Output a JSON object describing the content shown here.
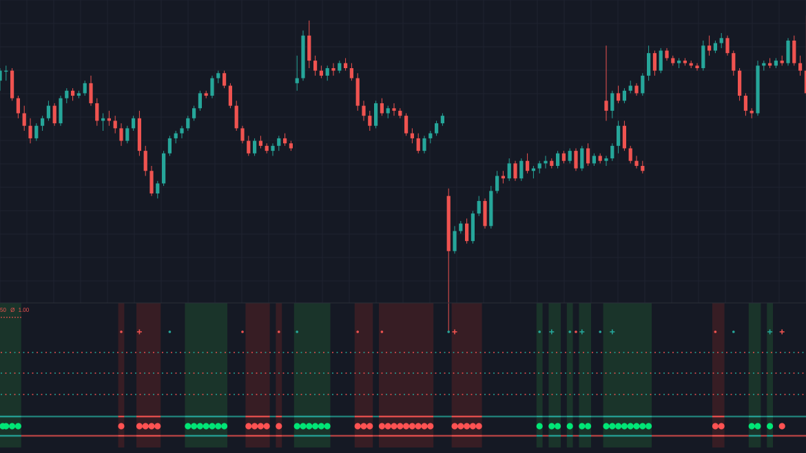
{
  "theme": {
    "background": "#151924",
    "grid": "#1e2230",
    "bull": "#26a69a",
    "bear": "#ef5350",
    "dot_green": "#00e676",
    "dot_red": "#ff5252",
    "zone_green": "#1b3a2c",
    "zone_red": "#3d1f24",
    "pane_divider": "#2a2e39"
  },
  "indicator": {
    "legend_value_a": "50",
    "legend_symbol": "Ø",
    "legend_value_b": "1.00"
  },
  "chart_data": {
    "type": "candlestick",
    "title": "",
    "xlabel": "",
    "ylabel": "",
    "ylim": [
      0,
      100
    ],
    "grid": true,
    "segments": [
      {
        "name": "segment-1",
        "x_start": 0,
        "candles": [
          [
            70,
            75,
            66,
            74
          ],
          [
            74,
            76,
            70,
            74
          ],
          [
            74,
            75,
            62,
            63
          ],
          [
            63,
            64,
            55,
            57
          ],
          [
            57,
            60,
            50,
            52
          ],
          [
            52,
            55,
            45,
            47
          ],
          [
            47,
            53,
            46,
            52
          ],
          [
            52,
            56,
            50,
            55
          ],
          [
            55,
            62,
            54,
            60
          ],
          [
            60,
            61,
            52,
            53
          ],
          [
            53,
            64,
            52,
            63
          ],
          [
            63,
            67,
            61,
            66
          ],
          [
            66,
            67,
            62,
            64
          ],
          [
            64,
            66,
            63,
            65
          ],
          [
            65,
            70,
            64,
            69
          ],
          [
            69,
            72,
            60,
            61
          ],
          [
            61,
            63,
            52,
            54
          ],
          [
            54,
            57,
            50,
            55
          ],
          [
            55,
            58,
            52,
            54
          ],
          [
            54,
            56,
            49,
            51
          ],
          [
            51,
            53,
            44,
            46
          ],
          [
            46,
            52,
            45,
            51
          ],
          [
            51,
            56,
            50,
            55
          ],
          [
            55,
            58,
            40,
            42
          ],
          [
            42,
            44,
            32,
            34
          ],
          [
            34,
            36,
            24,
            25
          ],
          [
            25,
            30,
            23,
            29
          ],
          [
            29,
            42,
            28,
            41
          ],
          [
            41,
            48,
            40,
            47
          ],
          [
            47,
            50,
            45,
            49
          ],
          [
            49,
            52,
            47,
            51
          ],
          [
            51,
            56,
            50,
            55
          ],
          [
            55,
            60,
            54,
            59
          ],
          [
            59,
            66,
            58,
            65
          ],
          [
            65,
            66,
            63,
            64
          ],
          [
            64,
            72,
            63,
            71
          ],
          [
            71,
            74,
            69,
            73
          ],
          [
            73,
            74,
            67,
            68
          ],
          [
            68,
            69,
            59,
            60
          ],
          [
            60,
            62,
            50,
            51
          ],
          [
            51,
            52,
            45,
            46
          ],
          [
            46,
            48,
            40,
            41
          ],
          [
            41,
            47,
            40,
            46
          ],
          [
            46,
            48,
            43,
            44
          ],
          [
            44,
            45,
            41,
            42
          ],
          [
            42,
            45,
            40,
            44
          ],
          [
            44,
            48,
            42,
            47
          ],
          [
            47,
            49,
            44,
            45
          ],
          [
            45,
            46,
            42,
            43
          ]
        ]
      },
      {
        "name": "segment-2",
        "x_start": 49,
        "candles": [
          [
            69,
            80,
            66,
            71
          ],
          [
            71,
            90,
            70,
            88
          ],
          [
            88,
            94,
            75,
            78
          ],
          [
            78,
            80,
            72,
            74
          ],
          [
            74,
            76,
            71,
            72
          ],
          [
            72,
            76,
            70,
            75
          ],
          [
            75,
            77,
            72,
            74
          ],
          [
            74,
            78,
            73,
            77
          ],
          [
            77,
            79,
            74,
            75
          ],
          [
            75,
            77,
            70,
            71
          ],
          [
            71,
            73,
            58,
            60
          ],
          [
            60,
            62,
            54,
            56
          ],
          [
            56,
            58,
            50,
            52
          ],
          [
            52,
            62,
            51,
            61
          ],
          [
            61,
            63,
            56,
            57
          ],
          [
            57,
            60,
            55,
            59
          ],
          [
            59,
            61,
            56,
            58
          ],
          [
            58,
            59,
            55,
            56
          ],
          [
            56,
            57,
            48,
            49
          ],
          [
            49,
            51,
            45,
            47
          ],
          [
            47,
            49,
            41,
            42
          ],
          [
            42,
            48,
            41,
            47
          ],
          [
            47,
            50,
            45,
            49
          ],
          [
            49,
            54,
            48,
            53
          ],
          [
            53,
            57,
            52,
            56
          ]
        ]
      },
      {
        "name": "segment-3",
        "x_start": 74,
        "candles": [
          [
            24,
            27,
            -30,
            2
          ],
          [
            2,
            12,
            1,
            10
          ],
          [
            10,
            14,
            9,
            13
          ],
          [
            13,
            15,
            5,
            6
          ],
          [
            6,
            18,
            5,
            17
          ],
          [
            17,
            24,
            16,
            22
          ],
          [
            22,
            23,
            11,
            12
          ],
          [
            12,
            28,
            11,
            26
          ],
          [
            26,
            34,
            25,
            32
          ],
          [
            32,
            34,
            29,
            31
          ],
          [
            31,
            39,
            30,
            37
          ],
          [
            37,
            38,
            30,
            31
          ],
          [
            31,
            39,
            30,
            38
          ],
          [
            38,
            41,
            33,
            34
          ],
          [
            34,
            36,
            31,
            35
          ],
          [
            35,
            38,
            33,
            37
          ],
          [
            37,
            40,
            35,
            38
          ],
          [
            38,
            39,
            35,
            36
          ],
          [
            36,
            42,
            35,
            41
          ],
          [
            41,
            42,
            37,
            38
          ],
          [
            38,
            43,
            37,
            42
          ],
          [
            42,
            43,
            34,
            35
          ],
          [
            35,
            44,
            34,
            43
          ],
          [
            43,
            45,
            36,
            37
          ],
          [
            37,
            41,
            36,
            40
          ],
          [
            40,
            41,
            37,
            38
          ],
          [
            38,
            40,
            36,
            39
          ],
          [
            39,
            45,
            38,
            44
          ],
          [
            44,
            54,
            41,
            52
          ],
          [
            52,
            54,
            42,
            43
          ],
          [
            43,
            44,
            37,
            38
          ],
          [
            38,
            40,
            35,
            36
          ],
          [
            36,
            38,
            33,
            34
          ]
        ]
      },
      {
        "name": "segment-4",
        "x_start": 100,
        "candles": [
          [
            62,
            84,
            54,
            58
          ],
          [
            58,
            66,
            55,
            65
          ],
          [
            65,
            68,
            61,
            62
          ],
          [
            62,
            67,
            61,
            66
          ],
          [
            66,
            70,
            65,
            68
          ],
          [
            68,
            69,
            64,
            65
          ],
          [
            65,
            73,
            64,
            72
          ],
          [
            72,
            84,
            70,
            81
          ],
          [
            81,
            82,
            72,
            74
          ],
          [
            74,
            83,
            73,
            82
          ],
          [
            82,
            83,
            78,
            79
          ],
          [
            79,
            80,
            76,
            77
          ],
          [
            77,
            79,
            75,
            78
          ],
          [
            78,
            79,
            76,
            77
          ],
          [
            77,
            78,
            75,
            76
          ],
          [
            76,
            77,
            74,
            75
          ],
          [
            75,
            86,
            74,
            84
          ],
          [
            84,
            88,
            80,
            82
          ],
          [
            82,
            86,
            81,
            85
          ],
          [
            85,
            89,
            83,
            87
          ],
          [
            87,
            88,
            80,
            81
          ],
          [
            81,
            82,
            72,
            74
          ],
          [
            74,
            75,
            62,
            64
          ],
          [
            64,
            65,
            56,
            58
          ],
          [
            58,
            59,
            55,
            57
          ],
          [
            57,
            78,
            56,
            76
          ],
          [
            76,
            78,
            74,
            77
          ],
          [
            77,
            79,
            75,
            76
          ],
          [
            76,
            79,
            75,
            78
          ],
          [
            78,
            80,
            76,
            77
          ],
          [
            77,
            87,
            76,
            86
          ],
          [
            86,
            88,
            76,
            77
          ],
          [
            77,
            80,
            72,
            74
          ],
          [
            74,
            96,
            64,
            65
          ],
          [
            65,
            66,
            57,
            58
          ],
          [
            58,
            59,
            50,
            51
          ]
        ]
      }
    ],
    "zones": [
      {
        "from": 0,
        "to": 3,
        "color": "green"
      },
      {
        "from": 20,
        "to": 20,
        "color": "red"
      },
      {
        "from": 23,
        "to": 26,
        "color": "red"
      },
      {
        "from": 31,
        "to": 37,
        "color": "green"
      },
      {
        "from": 41,
        "to": 44,
        "color": "red"
      },
      {
        "from": 46,
        "to": 46,
        "color": "red"
      },
      {
        "from": 49,
        "to": 54,
        "color": "green"
      },
      {
        "from": 59,
        "to": 61,
        "color": "red"
      },
      {
        "from": 63,
        "to": 71,
        "color": "red"
      },
      {
        "from": 75,
        "to": 79,
        "color": "red"
      },
      {
        "from": 89,
        "to": 89,
        "color": "green"
      },
      {
        "from": 91,
        "to": 92,
        "color": "green"
      },
      {
        "from": 94,
        "to": 94,
        "color": "green"
      },
      {
        "from": 96,
        "to": 97,
        "color": "green"
      },
      {
        "from": 100,
        "to": 107,
        "color": "green"
      },
      {
        "from": 118,
        "to": 119,
        "color": "red"
      },
      {
        "from": 124,
        "to": 125,
        "color": "green"
      },
      {
        "from": 127,
        "to": 127,
        "color": "green"
      }
    ],
    "markers": [
      {
        "x": 20,
        "type": "dot",
        "color": "red"
      },
      {
        "x": 23,
        "type": "plus",
        "color": "red"
      },
      {
        "x": 28,
        "type": "dot",
        "color": "green"
      },
      {
        "x": 40,
        "type": "dot",
        "color": "red"
      },
      {
        "x": 46,
        "type": "dot",
        "color": "red"
      },
      {
        "x": 49,
        "type": "dot",
        "color": "green"
      },
      {
        "x": 59,
        "type": "dot",
        "color": "red"
      },
      {
        "x": 63,
        "type": "dot",
        "color": "red"
      },
      {
        "x": 74,
        "type": "dot",
        "color": "green"
      },
      {
        "x": 75,
        "type": "plus",
        "color": "red"
      },
      {
        "x": 89,
        "type": "dot",
        "color": "green"
      },
      {
        "x": 91,
        "type": "plus",
        "color": "green"
      },
      {
        "x": 94,
        "type": "dot",
        "color": "green"
      },
      {
        "x": 95,
        "type": "dot",
        "color": "red"
      },
      {
        "x": 96,
        "type": "plus",
        "color": "green"
      },
      {
        "x": 99,
        "type": "dot",
        "color": "green"
      },
      {
        "x": 101,
        "type": "plus",
        "color": "green"
      },
      {
        "x": 118,
        "type": "dot",
        "color": "red"
      },
      {
        "x": 121,
        "type": "dot",
        "color": "green"
      },
      {
        "x": 127,
        "type": "plus",
        "color": "green"
      },
      {
        "x": 129,
        "type": "plus",
        "color": "red"
      }
    ],
    "signal_dots": [
      {
        "from": 0,
        "to": 3,
        "color": "green"
      },
      {
        "from": 20,
        "to": 20,
        "color": "red"
      },
      {
        "from": 23,
        "to": 26,
        "color": "red"
      },
      {
        "from": 31,
        "to": 37,
        "color": "green"
      },
      {
        "from": 41,
        "to": 44,
        "color": "red"
      },
      {
        "from": 46,
        "to": 46,
        "color": "red"
      },
      {
        "from": 49,
        "to": 54,
        "color": "green"
      },
      {
        "from": 59,
        "to": 61,
        "color": "red"
      },
      {
        "from": 63,
        "to": 71,
        "color": "red"
      },
      {
        "from": 75,
        "to": 79,
        "color": "red"
      },
      {
        "from": 89,
        "to": 89,
        "color": "green"
      },
      {
        "from": 91,
        "to": 92,
        "color": "green"
      },
      {
        "from": 94,
        "to": 94,
        "color": "green"
      },
      {
        "from": 96,
        "to": 97,
        "color": "green"
      },
      {
        "from": 100,
        "to": 107,
        "color": "green"
      },
      {
        "from": 118,
        "to": 119,
        "color": "red"
      },
      {
        "from": 124,
        "to": 125,
        "color": "green"
      },
      {
        "from": 127,
        "to": 127,
        "color": "green"
      },
      {
        "from": 129,
        "to": 129,
        "color": "red"
      }
    ],
    "level_lines": [
      {
        "level": "upper",
        "colors": [
          "red",
          "green"
        ]
      },
      {
        "level": "middle",
        "colors": [
          "red",
          "green"
        ]
      },
      {
        "level": "lower",
        "colors": [
          "red",
          "green"
        ]
      }
    ]
  }
}
